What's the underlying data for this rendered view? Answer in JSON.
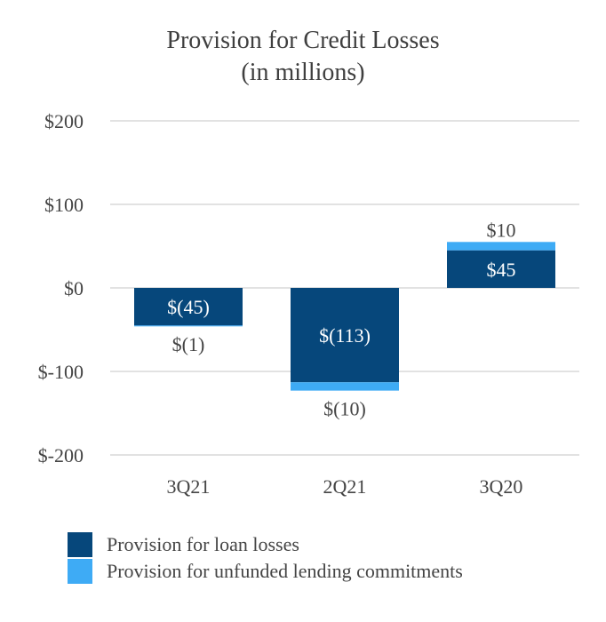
{
  "chart_data": {
    "type": "bar",
    "stacked": true,
    "title": "Provision for Credit Losses",
    "subtitle": "(in millions)",
    "categories": [
      "3Q21",
      "2Q21",
      "3Q20"
    ],
    "series": [
      {
        "name": "Provision for loan losses",
        "values": [
          -45,
          -113,
          45
        ],
        "labels": [
          "$(45)",
          "$(113)",
          "$45"
        ],
        "color": "#06477b"
      },
      {
        "name": "Provision for unfunded lending commitments",
        "values": [
          -1,
          -10,
          10
        ],
        "labels": [
          "$(1)",
          "$(10)",
          "$10"
        ],
        "color": "#3eabf5"
      }
    ],
    "yticks": [
      200,
      100,
      0,
      -100,
      -200
    ],
    "ytick_labels": [
      "$200",
      "$100",
      "$0",
      "$-100",
      "$-200"
    ],
    "ylim": [
      -200,
      200
    ],
    "grid": true,
    "legend": "bottom-left"
  }
}
